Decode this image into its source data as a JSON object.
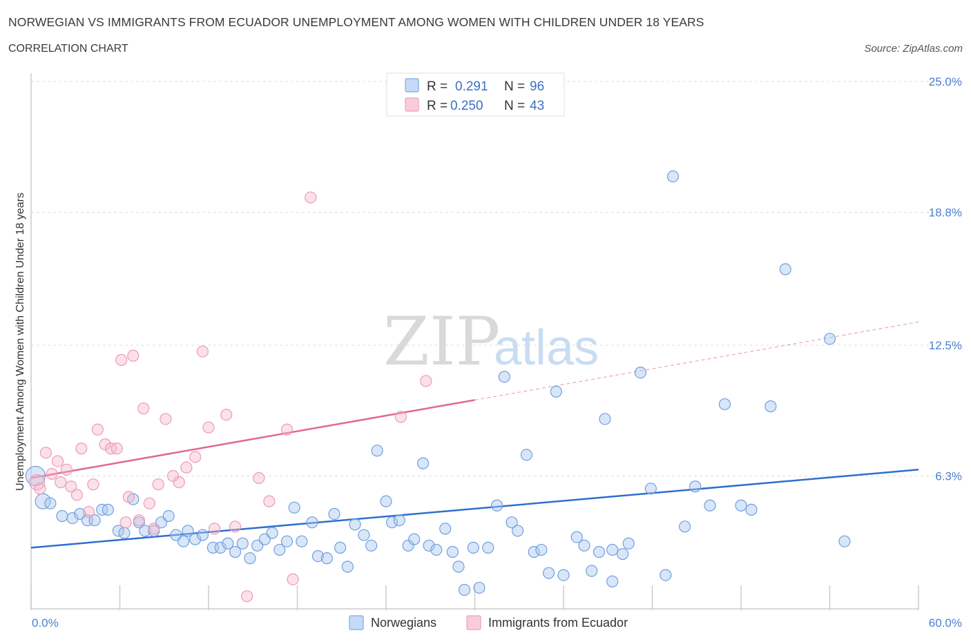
{
  "header": {
    "title": "NORWEGIAN VS IMMIGRANTS FROM ECUADOR UNEMPLOYMENT AMONG WOMEN WITH CHILDREN UNDER 18 YEARS",
    "subtitle": "CORRELATION CHART",
    "source": "Source: ZipAtlas.com"
  },
  "watermark": {
    "zip": "ZIP",
    "atlas": "atlas"
  },
  "legend_top": {
    "rows": [
      {
        "r_label": "R =",
        "r_value": "0.291",
        "n_label": "N =",
        "n_value": "96",
        "color": "#7aaae6"
      },
      {
        "r_label": "R =",
        "r_value": "0.250",
        "n_label": "N =",
        "n_value": "43",
        "color": "#f0a0b8"
      }
    ]
  },
  "legend_bottom": {
    "items": [
      {
        "label": "Norwegians",
        "color": "#7aaae6"
      },
      {
        "label": "Immigrants from Ecuador",
        "color": "#f0a0b8"
      }
    ]
  },
  "chart_data": {
    "type": "scatter",
    "title": "NORWEGIAN VS IMMIGRANTS FROM ECUADOR UNEMPLOYMENT AMONG WOMEN WITH CHILDREN UNDER 18 YEARS",
    "subtitle": "CORRELATION CHART",
    "xlabel": "",
    "ylabel": "Unemployment Among Women with Children Under 18 years",
    "xlim": [
      0,
      60
    ],
    "ylim": [
      0,
      25
    ],
    "x_tick_labels": [
      "0.0%",
      "60.0%"
    ],
    "y_ticks": [
      6.3,
      12.5,
      18.8,
      25.0
    ],
    "y_tick_labels": [
      "6.3%",
      "12.5%",
      "18.8%",
      "25.0%"
    ],
    "grid": true,
    "legend_position": "top-center",
    "series": [
      {
        "name": "Norwegians",
        "color": "#7aaae6",
        "trend": {
          "x0": 0,
          "y0": 2.9,
          "x1": 60,
          "y1": 6.6,
          "dashed_from": null
        },
        "points": [
          [
            0.3,
            6.3,
            3
          ],
          [
            0.8,
            5.1,
            2
          ],
          [
            1.3,
            5.0,
            1
          ],
          [
            2.1,
            4.4,
            1
          ],
          [
            2.8,
            4.3,
            1
          ],
          [
            3.3,
            4.5,
            1
          ],
          [
            3.8,
            4.2,
            1
          ],
          [
            4.3,
            4.2,
            1
          ],
          [
            4.8,
            4.7,
            1
          ],
          [
            5.2,
            4.7,
            1
          ],
          [
            5.9,
            3.7,
            1
          ],
          [
            6.3,
            3.6,
            1
          ],
          [
            6.9,
            5.2,
            1
          ],
          [
            7.3,
            4.1,
            1
          ],
          [
            7.7,
            3.7,
            1
          ],
          [
            8.3,
            3.7,
            1
          ],
          [
            8.8,
            4.1,
            1
          ],
          [
            9.3,
            4.4,
            1
          ],
          [
            9.8,
            3.5,
            1
          ],
          [
            10.3,
            3.2,
            1
          ],
          [
            10.6,
            3.7,
            1
          ],
          [
            11.1,
            3.3,
            1
          ],
          [
            11.6,
            3.5,
            1
          ],
          [
            12.3,
            2.9,
            1
          ],
          [
            12.8,
            2.9,
            1
          ],
          [
            13.3,
            3.1,
            1
          ],
          [
            13.8,
            2.7,
            1
          ],
          [
            14.3,
            3.1,
            1
          ],
          [
            14.8,
            2.4,
            1
          ],
          [
            15.3,
            3.0,
            1
          ],
          [
            15.8,
            3.3,
            1
          ],
          [
            16.3,
            3.6,
            1
          ],
          [
            16.8,
            2.8,
            1
          ],
          [
            17.3,
            3.2,
            1
          ],
          [
            17.8,
            4.8,
            1
          ],
          [
            18.3,
            3.2,
            1
          ],
          [
            19.0,
            4.1,
            1
          ],
          [
            19.4,
            2.5,
            1
          ],
          [
            20.0,
            2.4,
            1
          ],
          [
            20.5,
            4.5,
            1
          ],
          [
            20.9,
            2.9,
            1
          ],
          [
            21.4,
            2.0,
            1
          ],
          [
            21.9,
            4.0,
            1
          ],
          [
            22.5,
            3.5,
            1
          ],
          [
            23.0,
            3.0,
            1
          ],
          [
            23.4,
            7.5,
            1
          ],
          [
            24.0,
            5.1,
            1
          ],
          [
            24.4,
            4.1,
            1
          ],
          [
            24.9,
            4.2,
            1
          ],
          [
            25.5,
            3.0,
            1
          ],
          [
            25.9,
            3.3,
            1
          ],
          [
            26.5,
            6.9,
            1
          ],
          [
            26.9,
            3.0,
            1
          ],
          [
            27.4,
            2.8,
            1
          ],
          [
            28.0,
            3.8,
            1
          ],
          [
            28.5,
            2.7,
            1
          ],
          [
            28.9,
            2.0,
            1
          ],
          [
            29.3,
            0.9,
            1
          ],
          [
            29.9,
            2.9,
            1
          ],
          [
            30.3,
            1.0,
            1
          ],
          [
            30.9,
            2.9,
            1
          ],
          [
            31.5,
            4.9,
            1
          ],
          [
            32.0,
            11.0,
            1
          ],
          [
            32.5,
            4.1,
            1
          ],
          [
            32.9,
            3.7,
            1
          ],
          [
            33.5,
            7.3,
            1
          ],
          [
            34.0,
            2.7,
            1
          ],
          [
            34.5,
            2.8,
            1
          ],
          [
            35.0,
            1.7,
            1
          ],
          [
            35.5,
            10.3,
            1
          ],
          [
            36.0,
            1.6,
            1
          ],
          [
            36.9,
            3.4,
            1
          ],
          [
            37.4,
            3.0,
            1
          ],
          [
            37.9,
            1.8,
            1
          ],
          [
            38.4,
            2.7,
            1
          ],
          [
            38.8,
            9.0,
            1
          ],
          [
            39.3,
            2.8,
            1
          ],
          [
            39.3,
            1.3,
            1
          ],
          [
            40.0,
            2.6,
            1
          ],
          [
            40.4,
            3.1,
            1
          ],
          [
            41.2,
            11.2,
            1
          ],
          [
            41.9,
            5.7,
            1
          ],
          [
            42.9,
            1.6,
            1
          ],
          [
            43.4,
            20.5,
            1
          ],
          [
            44.2,
            3.9,
            1
          ],
          [
            44.9,
            5.8,
            1
          ],
          [
            45.9,
            4.9,
            1
          ],
          [
            46.9,
            9.7,
            1
          ],
          [
            48.0,
            4.9,
            1
          ],
          [
            48.7,
            4.7,
            1
          ],
          [
            50.0,
            9.6,
            1
          ],
          [
            51.0,
            16.1,
            1
          ],
          [
            54.0,
            12.8,
            1
          ],
          [
            55.0,
            3.2,
            1
          ]
        ]
      },
      {
        "name": "Immigrants from Ecuador",
        "color": "#f0a0b8",
        "trend": {
          "x0": 0,
          "y0": 6.2,
          "x1": 60,
          "y1": 13.6,
          "dashed_from": 30
        },
        "points": [
          [
            0.4,
            6.0,
            2
          ],
          [
            0.6,
            5.7,
            1
          ],
          [
            1.0,
            7.4,
            1
          ],
          [
            1.4,
            6.4,
            1
          ],
          [
            1.8,
            7.0,
            1
          ],
          [
            2.0,
            6.0,
            1
          ],
          [
            2.4,
            6.6,
            1
          ],
          [
            2.7,
            5.8,
            1
          ],
          [
            3.1,
            5.4,
            1
          ],
          [
            3.4,
            7.6,
            1
          ],
          [
            3.9,
            4.6,
            1
          ],
          [
            4.2,
            5.9,
            1
          ],
          [
            4.5,
            8.5,
            1
          ],
          [
            5.0,
            7.8,
            1
          ],
          [
            5.4,
            7.6,
            1
          ],
          [
            5.8,
            7.6,
            1
          ],
          [
            6.1,
            11.8,
            1
          ],
          [
            6.6,
            5.3,
            1
          ],
          [
            6.9,
            12.0,
            1
          ],
          [
            7.3,
            4.2,
            1
          ],
          [
            7.6,
            9.5,
            1
          ],
          [
            8.0,
            5.0,
            1
          ],
          [
            8.3,
            3.8,
            1
          ],
          [
            8.6,
            5.9,
            1
          ],
          [
            9.1,
            9.0,
            1
          ],
          [
            9.6,
            6.3,
            1
          ],
          [
            10.0,
            6.0,
            1
          ],
          [
            10.5,
            6.7,
            1
          ],
          [
            11.1,
            7.2,
            1
          ],
          [
            11.6,
            12.2,
            1
          ],
          [
            12.0,
            8.6,
            1
          ],
          [
            12.4,
            3.8,
            1
          ],
          [
            13.2,
            9.2,
            1
          ],
          [
            13.8,
            3.9,
            1
          ],
          [
            14.6,
            0.6,
            1
          ],
          [
            15.4,
            6.2,
            1
          ],
          [
            16.1,
            5.1,
            1
          ],
          [
            17.3,
            8.5,
            1
          ],
          [
            17.7,
            1.4,
            1
          ],
          [
            18.9,
            19.5,
            1
          ],
          [
            25.0,
            9.1,
            1
          ],
          [
            26.7,
            10.8,
            1
          ],
          [
            6.4,
            4.1,
            1
          ]
        ]
      }
    ]
  }
}
